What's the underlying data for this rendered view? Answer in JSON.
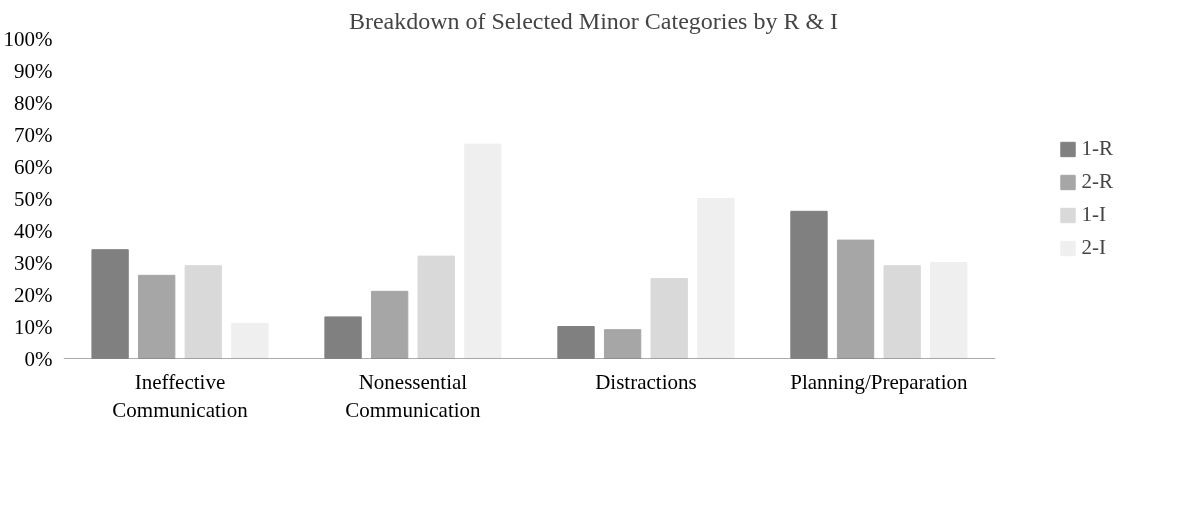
{
  "chart_data": {
    "type": "bar",
    "title": "Breakdown of Selected Minor Categories by R & I",
    "categories": [
      "Ineffective Communication",
      "Nonessential Communication",
      "Distractions",
      "Planning/Preparation"
    ],
    "series": [
      {
        "name": "1-R",
        "color": "#808080",
        "values": [
          34,
          13,
          10,
          46
        ]
      },
      {
        "name": "2-R",
        "color": "#a6a6a6",
        "values": [
          26,
          21,
          9,
          37
        ]
      },
      {
        "name": "1-I",
        "color": "#d9d9d9",
        "values": [
          29,
          32,
          25,
          29
        ]
      },
      {
        "name": "2-I",
        "color": "#efefef",
        "values": [
          11,
          67,
          50,
          30
        ]
      }
    ],
    "ylim": [
      0,
      100
    ],
    "yticks": [
      {
        "value": 0,
        "label": "0%"
      },
      {
        "value": 10,
        "label": "10%"
      },
      {
        "value": 20,
        "label": "20%"
      },
      {
        "value": 30,
        "label": "30%"
      },
      {
        "value": 40,
        "label": "40%"
      },
      {
        "value": 50,
        "label": "50%"
      },
      {
        "value": 60,
        "label": "60%"
      },
      {
        "value": 70,
        "label": "70%"
      },
      {
        "value": 80,
        "label": "80%"
      },
      {
        "value": 90,
        "label": "90%"
      },
      {
        "value": 100,
        "label": "100%"
      }
    ],
    "grid": false,
    "legend": "right"
  }
}
